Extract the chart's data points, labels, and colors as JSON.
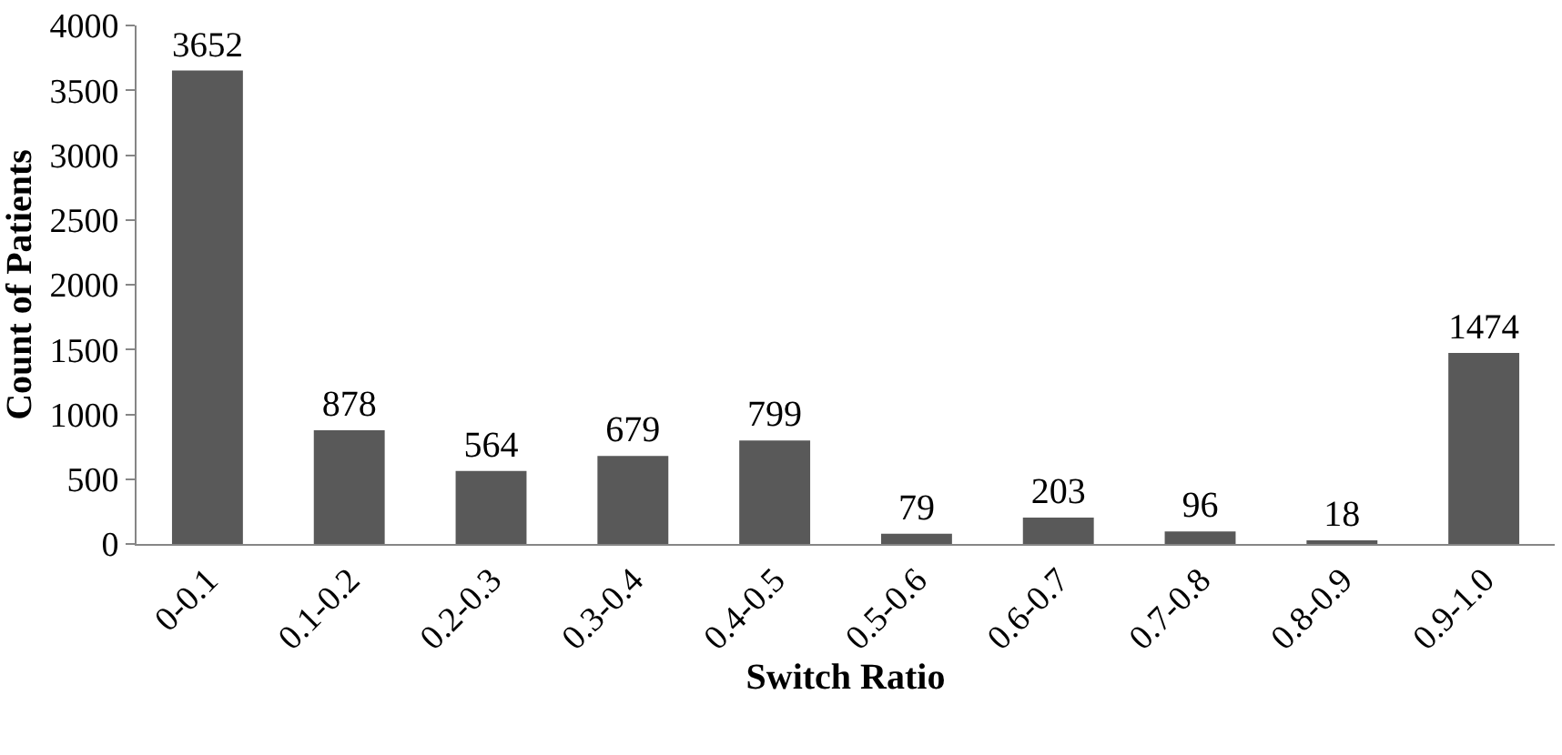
{
  "chart_data": {
    "type": "bar",
    "xlabel": "Switch Ratio",
    "ylabel": "Count of Patients",
    "categories": [
      "0-0.1",
      "0.1-0.2",
      "0.2-0.3",
      "0.3-0.4",
      "0.4-0.5",
      "0.5-0.6",
      "0.6-0.7",
      "0.7-0.8",
      "0.8-0.9",
      "0.9-1.0"
    ],
    "values": [
      3652,
      878,
      564,
      679,
      799,
      79,
      203,
      96,
      18,
      1474
    ],
    "color": "#595959",
    "ylim": [
      0,
      4000
    ],
    "yticks": [
      0,
      500,
      1000,
      1500,
      2000,
      2500,
      3000,
      3500,
      4000
    ],
    "data_labels": true
  }
}
